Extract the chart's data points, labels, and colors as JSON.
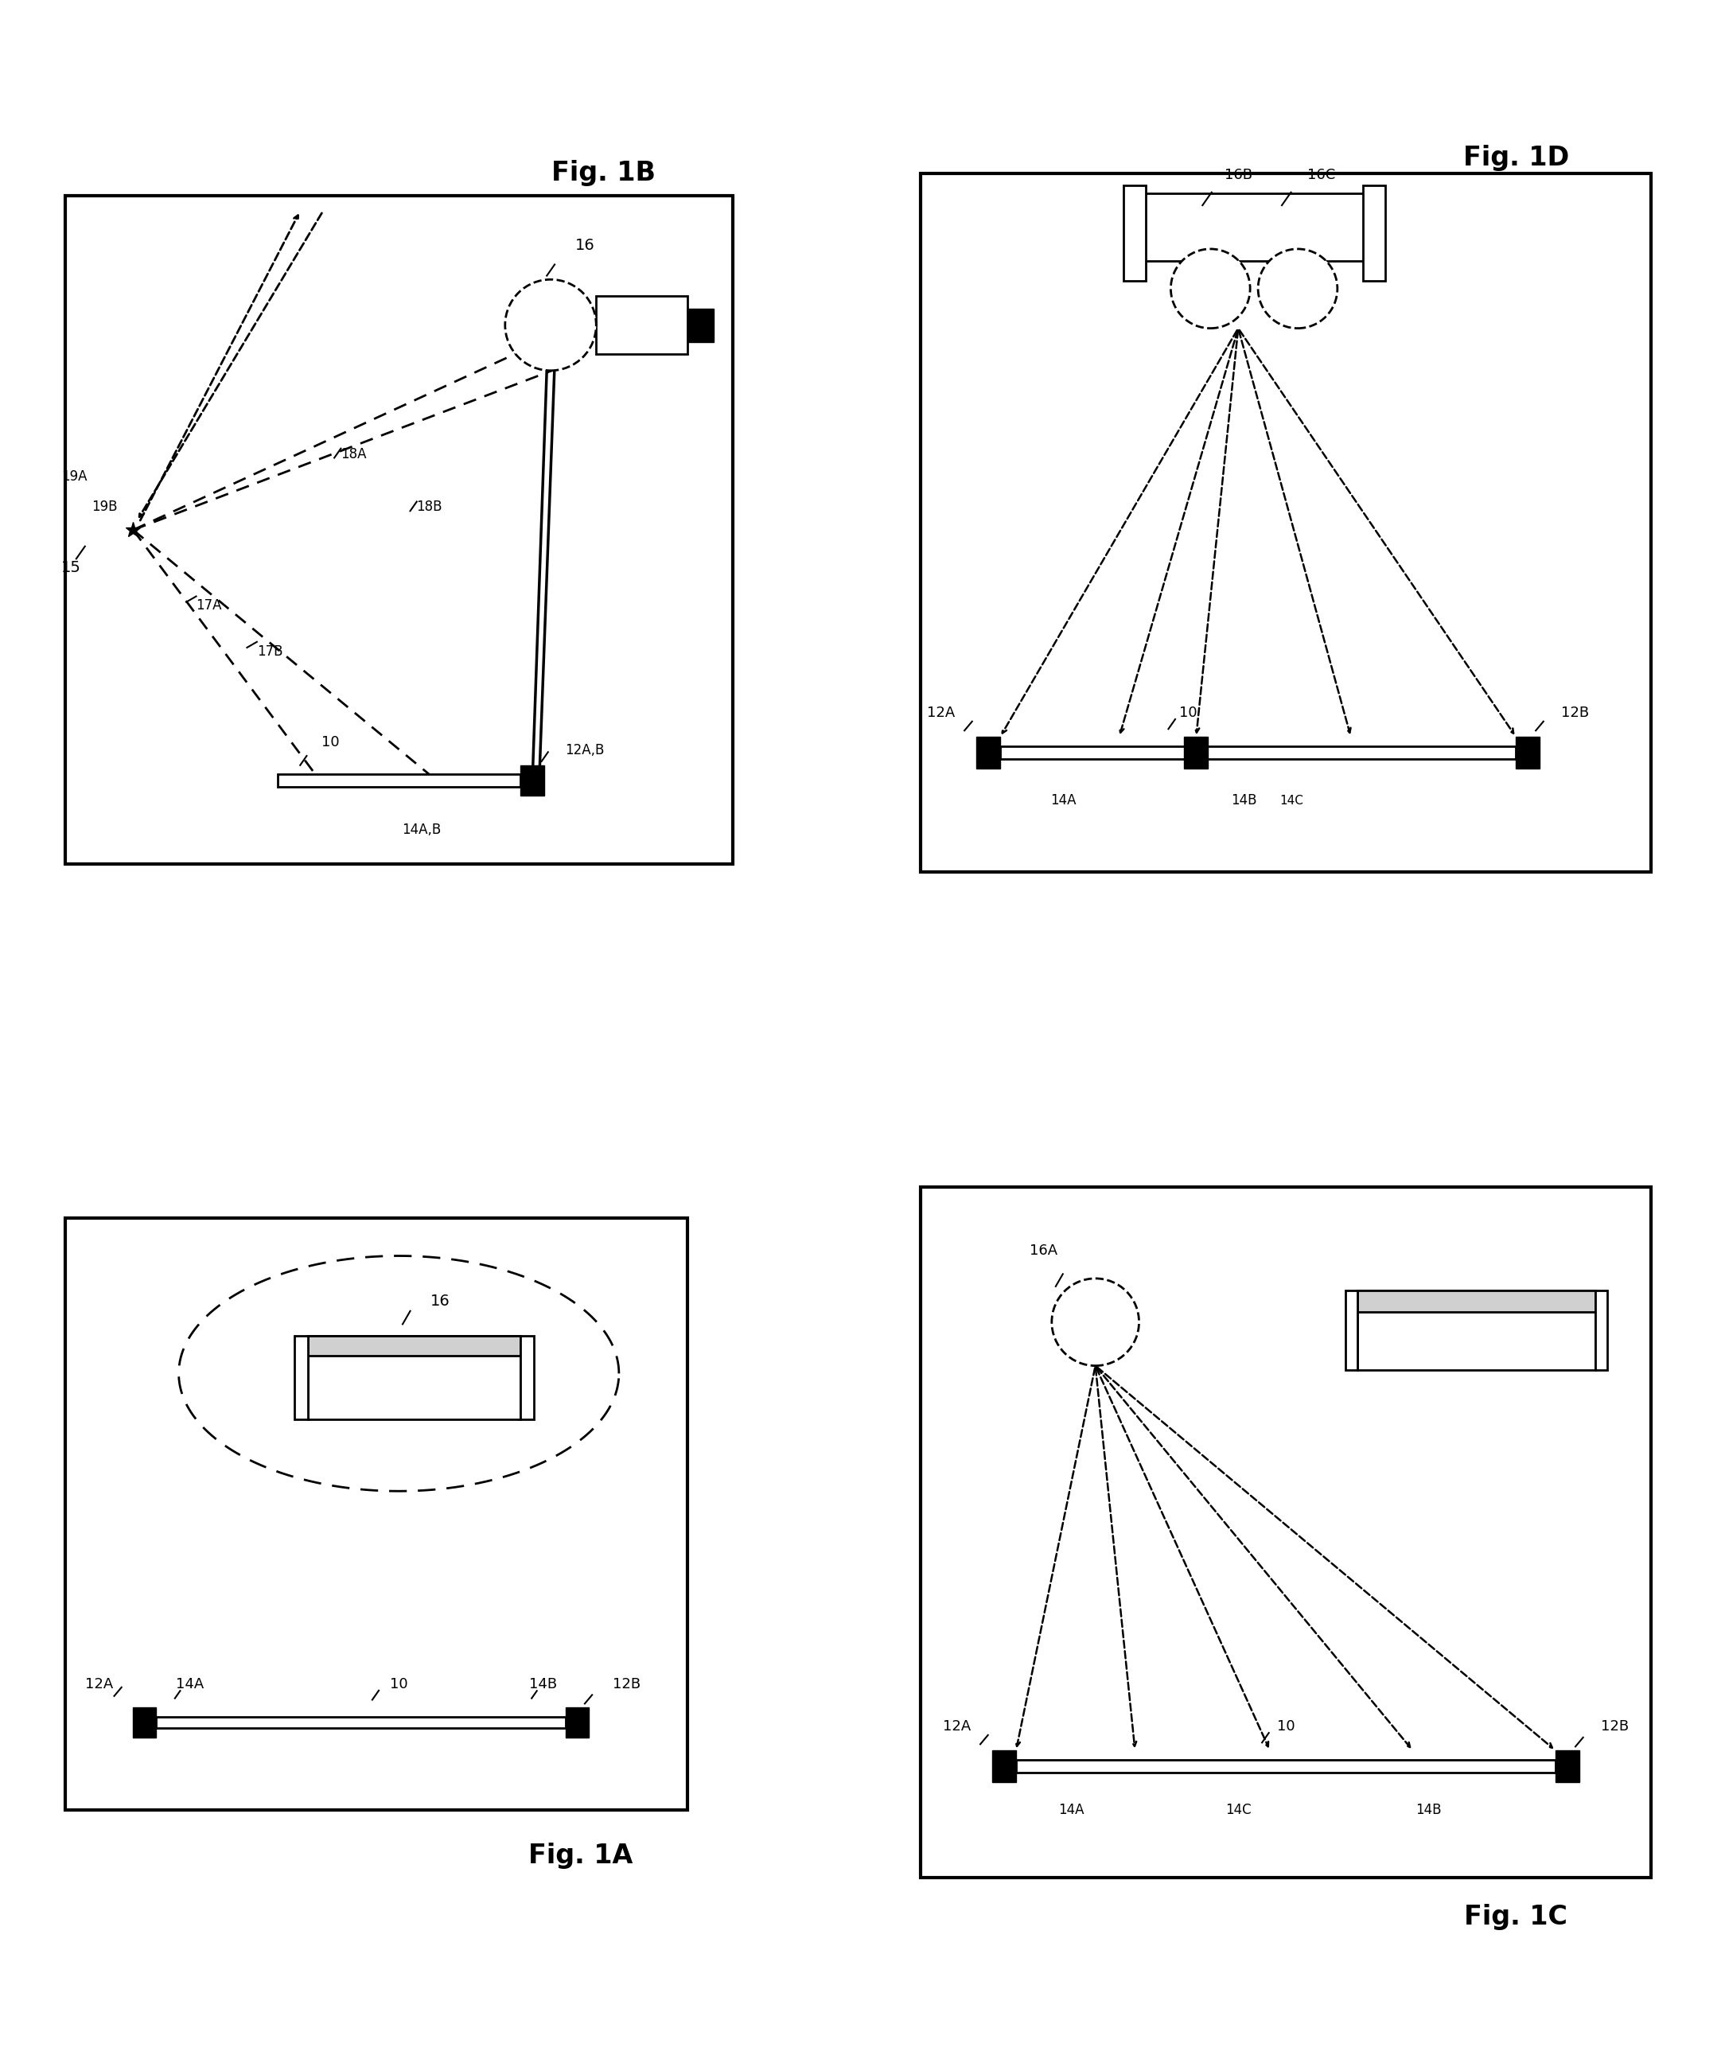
{
  "background_color": "#ffffff",
  "fig_width": 21.68,
  "fig_height": 25.88,
  "figs": {
    "1A": {
      "label": "Fig. 1A"
    },
    "1B": {
      "label": "Fig. 1B"
    },
    "1C": {
      "label": "Fig. 1C"
    },
    "1D": {
      "label": "Fig. 1D"
    }
  }
}
